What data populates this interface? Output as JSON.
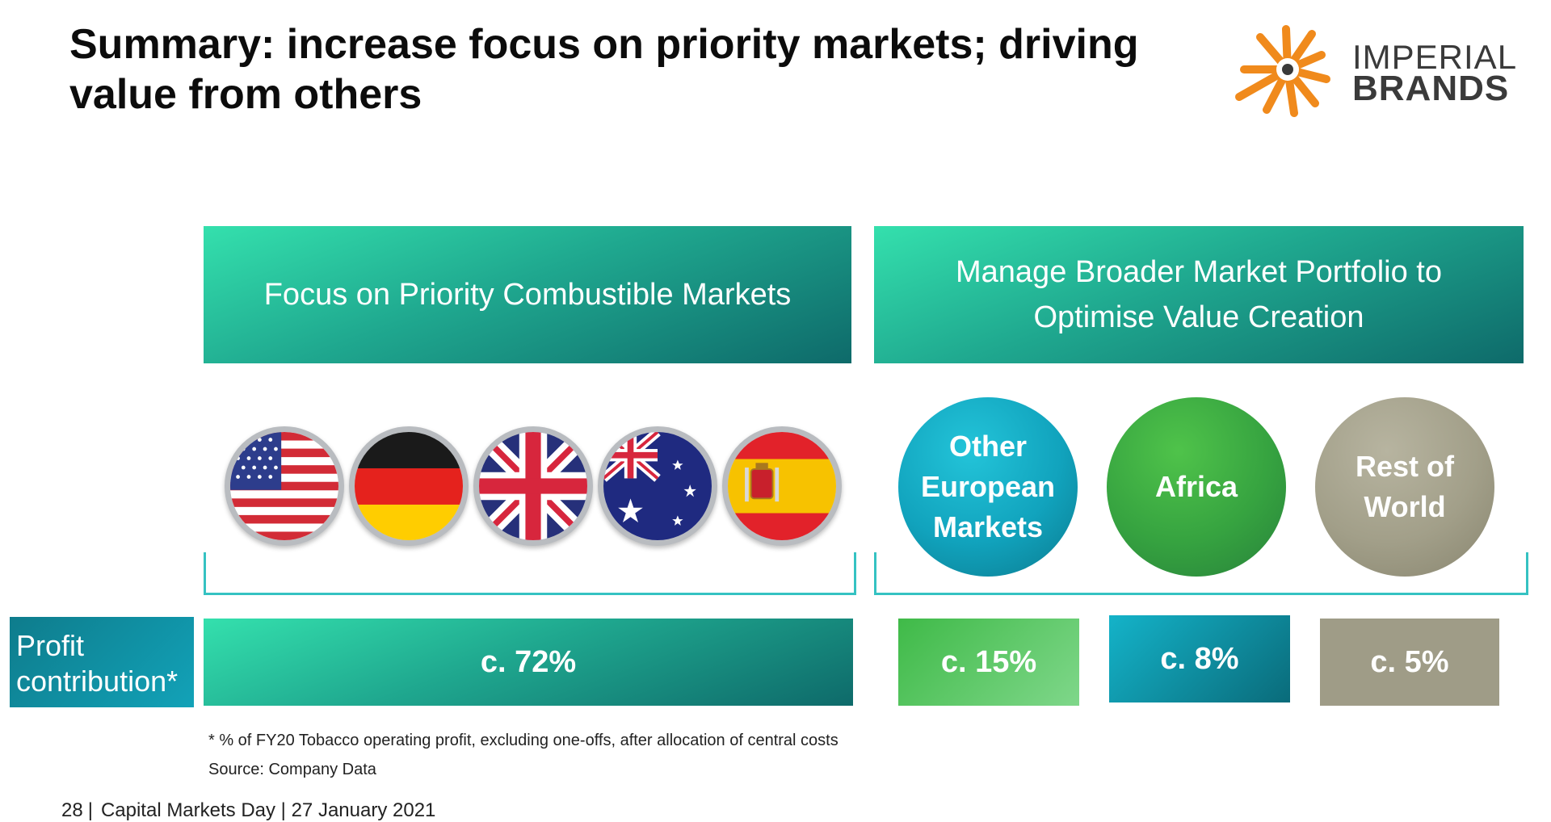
{
  "title": "Summary: increase focus on priority markets; driving\nvalue from others",
  "logo": {
    "line1": "IMPERIAL",
    "line2": "BRANDS",
    "accent_color": "#f08a1c"
  },
  "banners": {
    "left": "Focus on Priority Combustible Markets",
    "right": "Manage Broader Market Portfolio to\nOptimise Value Creation"
  },
  "flags": [
    "usa-flag-icon",
    "germany-flag-icon",
    "uk-flag-icon",
    "australia-flag-icon",
    "spain-flag-icon"
  ],
  "circles": {
    "europe": "Other\nEuropean\nMarkets",
    "africa": "Africa",
    "row": "Rest of\nWorld"
  },
  "profit": {
    "label": "Profit\ncontribution*",
    "priority": "c. 72%",
    "europe": "c. 15%",
    "africa": "c. 8%",
    "row": "c. 5%"
  },
  "footnote": "* % of FY20 Tobacco operating profit, excluding one-offs, after allocation of central costs",
  "source": "Source: Company Data",
  "footer": {
    "page": "28",
    "separator": "|",
    "text": "Capital Markets Day | 27 January 2021"
  },
  "colors": {
    "teal_light": "#34e0ad",
    "teal_dark": "#0e6a6a",
    "green": "#36a340",
    "cyan": "#11a3bd",
    "taupe": "#a29f89"
  }
}
